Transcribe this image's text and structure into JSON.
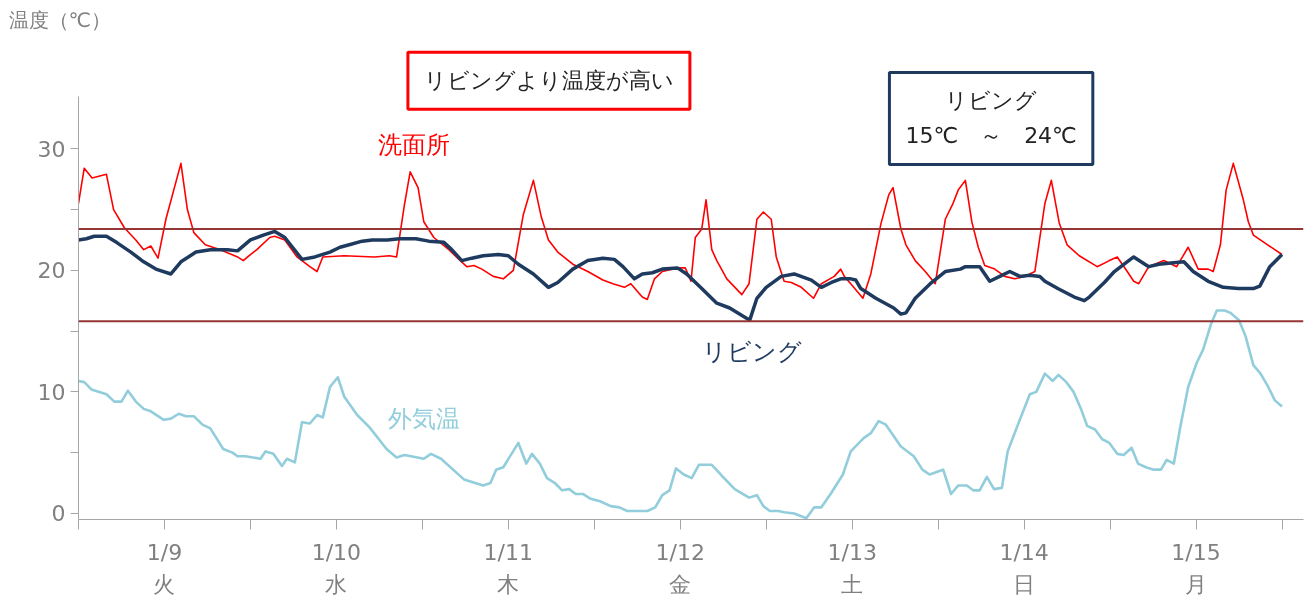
{
  "chart_data": {
    "type": "line",
    "ylabel": "温度（℃）",
    "annotations": [
      "リビングより温度が高い",
      "リビング\n15℃　～　24℃"
    ],
    "xlim": [
      "--01-09",
      "--01-16T03:00"
    ],
    "ylim": [
      -0.5,
      34.3
    ],
    "xticks": [
      {
        "value": "--01-09",
        "label": null
      },
      {
        "value": "--01-09T12:00",
        "label": "1/9\n火"
      },
      {
        "value": "--01-10",
        "label": null
      },
      {
        "value": "--01-10T12:00",
        "label": "1/10\n水"
      },
      {
        "value": "--01-11",
        "label": null
      },
      {
        "value": "--01-11T12:00",
        "label": "1/11\n木"
      },
      {
        "value": "--01-12",
        "label": null
      },
      {
        "value": "--01-12T12:00",
        "label": "1/12\n金"
      },
      {
        "value": "--01-13",
        "label": null
      },
      {
        "value": "--01-13T12:00",
        "label": "1/13\n土"
      },
      {
        "value": "--01-14",
        "label": null
      },
      {
        "value": "--01-14T12:00",
        "label": "1/14\n日"
      },
      {
        "value": "--01-15",
        "label": null
      },
      {
        "value": "--01-15T12:00",
        "label": "1/15\n月"
      },
      {
        "value": "--01-16",
        "label": null
      }
    ],
    "yticks": [
      0,
      {
        "value": 5,
        "label": null
      },
      10,
      {
        "value": 15,
        "label": null
      },
      20,
      {
        "value": 25,
        "label": null
      },
      30
    ],
    "grid": false,
    "ref_lines": [
      {
        "axis": "y",
        "value": 23.4,
        "color": "#943634"
      },
      {
        "axis": "y",
        "value": 15.8,
        "color": "#943634"
      }
    ],
    "series": [
      {
        "name": "洗面所",
        "color": "#ff0000",
        "x": [
          "--01-09T00:00",
          "--01-09T00:48",
          "--01-09T01:54",
          "--01-09T03:54",
          "--01-09T04:54",
          "--01-09T06:24",
          "--01-09T08:00",
          "--01-09T09:06",
          "--01-09T10:06",
          "--01-09T11:06",
          "--01-09T12:12",
          "--01-09T14:18",
          "--01-09T15:12",
          "--01-09T16:06",
          "--01-09T17:42",
          "--01-09T19:48",
          "--01-09T22:12",
          "--01-09T23:00",
          "--01-10T00:00",
          "--01-10T00:54",
          "--01-10T02:42",
          "--01-10T03:24",
          "--01-10T04:48",
          "--01-10T06:30",
          "--01-10T08:18",
          "--01-10T09:18",
          "--01-10T10:06",
          "--01-10T13:06",
          "--01-10T17:18",
          "--01-10T19:24",
          "--01-10T20:24",
          "--01-10T21:30",
          "--01-10T22:18",
          "--01-10T23:24",
          "--01-11T00:12",
          "--01-11T01:36",
          "--01-11T03:42",
          "--01-11T05:06",
          "--01-11T06:12",
          "--01-11T07:12",
          "--01-11T08:18",
          "--01-11T09:54",
          "--01-11T11:18",
          "--01-11T12:42",
          "--01-11T14:06",
          "--01-11T15:30",
          "--01-11T16:36",
          "--01-11T17:36",
          "--01-11T18:54",
          "--01-11T21:00",
          "--01-11T23:06",
          "--01-12T01:12",
          "--01-12T02:36",
          "--01-12T04:12",
          "--01-12T05:06",
          "--01-12T06:42",
          "--01-12T07:24",
          "--01-12T08:24",
          "--01-12T09:30",
          "--01-12T11:36",
          "--01-12T12:42",
          "--01-12T13:30",
          "--01-12T14:06",
          "--01-12T15:00",
          "--01-12T15:36",
          "--01-12T16:24",
          "--01-12T17:06",
          "--01-12T18:30",
          "--01-12T20:36",
          "--01-12T21:36",
          "--01-12T22:42",
          "--01-12T23:36",
          "--01-13T00:42",
          "--01-13T01:24",
          "--01-13T02:30",
          "--01-13T03:30",
          "--01-13T04:54",
          "--01-13T06:36",
          "--01-13T07:42",
          "--01-13T09:30",
          "--01-13T10:24",
          "--01-13T10:54",
          "--01-13T11:48",
          "--01-13T13:30",
          "--01-13T14:36",
          "--01-13T16:00",
          "--01-13T17:06",
          "--01-13T17:42",
          "--01-13T18:48",
          "--01-13T19:30",
          "--01-13T20:48",
          "--01-13T22:12",
          "--01-13T23:36",
          "--01-14T01:00",
          "--01-14T02:00",
          "--01-14T02:48",
          "--01-14T03:48",
          "--01-14T04:42",
          "--01-14T05:36",
          "--01-14T06:30",
          "--01-14T07:54",
          "--01-14T09:18",
          "--01-14T10:42",
          "--01-14T12:06",
          "--01-14T13:30",
          "--01-14T14:54",
          "--01-14T15:48",
          "--01-14T16:54",
          "--01-14T18:00",
          "--01-14T19:42",
          "--01-14T22:12",
          "--01-14T23:54",
          "--01-15T01:00",
          "--01-15T02:24",
          "--01-15T03:18",
          "--01-15T04:00",
          "--01-15T05:24",
          "--01-15T07:30",
          "--01-15T09:18",
          "--01-15T10:54",
          "--01-15T12:18",
          "--01-15T13:42",
          "--01-15T14:24",
          "--01-15T15:24",
          "--01-15T16:12",
          "--01-15T17:12",
          "--01-15T18:36",
          "--01-15T19:18",
          "--01-15T20:00",
          "--01-15T22:00",
          "--01-16T00:00"
        ],
        "values": [
          25.5,
          28.4,
          27.6,
          27.9,
          25.0,
          23.5,
          22.5,
          21.7,
          22.0,
          21.0,
          24.2,
          28.8,
          25.0,
          23.1,
          22.1,
          21.7,
          21.1,
          20.8,
          21.3,
          21.7,
          22.7,
          22.8,
          22.5,
          21.1,
          20.3,
          19.9,
          21.1,
          21.2,
          21.1,
          21.2,
          21.1,
          25.4,
          28.1,
          26.8,
          24.0,
          22.7,
          21.7,
          20.9,
          20.3,
          20.4,
          20.1,
          19.5,
          19.3,
          20.0,
          24.6,
          27.4,
          24.4,
          22.5,
          21.5,
          20.5,
          19.9,
          19.2,
          18.9,
          18.6,
          18.9,
          17.8,
          17.6,
          19.3,
          19.9,
          20.2,
          20.2,
          19.1,
          22.7,
          23.4,
          25.8,
          21.7,
          20.8,
          19.3,
          18.0,
          18.9,
          24.2,
          24.8,
          24.2,
          21.1,
          19.1,
          19.0,
          18.6,
          17.7,
          18.9,
          19.5,
          20.1,
          19.5,
          18.9,
          17.7,
          19.7,
          23.8,
          26.2,
          26.8,
          23.4,
          22.1,
          20.8,
          19.9,
          18.9,
          24.2,
          25.4,
          26.6,
          27.4,
          24.0,
          21.9,
          20.4,
          20.1,
          19.5,
          19.3,
          19.5,
          19.9,
          25.5,
          27.4,
          23.9,
          22.1,
          21.2,
          20.3,
          20.8,
          21.1,
          19.9,
          19.1,
          18.9,
          20.3,
          20.8,
          20.3,
          21.9,
          20.1,
          20.1,
          19.9,
          22.1,
          26.6,
          28.8,
          25.8,
          24.0,
          22.9,
          22.1,
          21.3
        ]
      },
      {
        "name": "リビング",
        "color": "#1f3a5f",
        "x": [
          "--01-09T00:00",
          "--01-09T01:06",
          "--01-09T02:12",
          "--01-09T03:54",
          "--01-09T05:18",
          "--01-09T07:18",
          "--01-09T09:06",
          "--01-09T10:48",
          "--01-09T12:54",
          "--01-09T14:18",
          "--01-09T16:24",
          "--01-09T18:24",
          "--01-09T20:48",
          "--01-09T22:12",
          "--01-10T00:00",
          "--01-10T01:48",
          "--01-10T03:24",
          "--01-10T04:48",
          "--01-10T07:12",
          "--01-10T09:00",
          "--01-10T11:06",
          "--01-10T12:30",
          "--01-10T13:48",
          "--01-10T15:36",
          "--01-10T17:00",
          "--01-10T19:06",
          "--01-10T20:48",
          "--01-10T23:06",
          "--01-11T00:54",
          "--01-11T03:00",
          "--01-11T04:06",
          "--01-11T05:30",
          "--01-11T06:54",
          "--01-11T08:30",
          "--01-11T10:36",
          "--01-11T12:00",
          "--01-11T13:24",
          "--01-11T15:30",
          "--01-11T17:36",
          "--01-11T18:54",
          "--01-11T21:00",
          "--01-11T23:06",
          "--01-12T01:12",
          "--01-12T02:48",
          "--01-12T04:00",
          "--01-12T05:36",
          "--01-12T06:42",
          "--01-12T08:06",
          "--01-12T09:30",
          "--01-12T11:36",
          "--01-12T12:54",
          "--01-12T15:00",
          "--01-12T17:06",
          "--01-12T18:54",
          "--01-12T21:42",
          "--01-12T22:42",
          "--01-13T00:00",
          "--01-13T02:06",
          "--01-13T03:54",
          "--01-13T06:18",
          "--01-13T07:42",
          "--01-13T09:06",
          "--01-13T10:24",
          "--01-13T11:48",
          "--01-13T12:30",
          "--01-13T13:12",
          "--01-13T15:18",
          "--01-13T17:48",
          "--01-13T18:48",
          "--01-13T19:30",
          "--01-13T20:48",
          "--01-13T22:54",
          "--01-14T01:00",
          "--01-14T03:06",
          "--01-14T03:48",
          "--01-14T05:48",
          "--01-14T07:12",
          "--01-14T08:36",
          "--01-14T10:00",
          "--01-14T11:24",
          "--01-14T12:48",
          "--01-14T14:12",
          "--01-14T14:54",
          "--01-14T16:42",
          "--01-14T19:00",
          "--01-14T20:24",
          "--01-14T21:06",
          "--01-14T23:12",
          "--01-15T00:36",
          "--01-15T02:36",
          "--01-15T03:18",
          "--01-15T05:24",
          "--01-15T06:48",
          "--01-15T08:30",
          "--01-15T10:18",
          "--01-15T11:36",
          "--01-15T13:42",
          "--01-15T15:48",
          "--01-15T17:54",
          "--01-15T20:00",
          "--01-15T20:54",
          "--01-15T22:18",
          "--01-16T00:00"
        ],
        "values": [
          22.5,
          22.6,
          22.8,
          22.8,
          22.3,
          21.5,
          20.7,
          20.1,
          19.7,
          20.7,
          21.5,
          21.7,
          21.7,
          21.6,
          22.5,
          22.9,
          23.2,
          22.7,
          20.9,
          21.1,
          21.5,
          21.9,
          22.1,
          22.4,
          22.5,
          22.5,
          22.6,
          22.6,
          22.4,
          22.3,
          21.7,
          20.8,
          21.0,
          21.2,
          21.3,
          21.2,
          20.5,
          19.7,
          18.6,
          19.0,
          20.1,
          20.8,
          21.0,
          20.9,
          20.3,
          19.3,
          19.7,
          19.8,
          20.1,
          20.2,
          19.7,
          18.5,
          17.3,
          16.9,
          15.9,
          17.7,
          18.6,
          19.5,
          19.7,
          19.2,
          18.6,
          19.0,
          19.3,
          19.3,
          19.2,
          18.5,
          17.7,
          16.9,
          16.4,
          16.5,
          17.7,
          18.9,
          19.9,
          20.1,
          20.3,
          20.3,
          19.1,
          19.5,
          19.9,
          19.5,
          19.6,
          19.5,
          19.1,
          18.5,
          17.8,
          17.5,
          17.8,
          19.0,
          19.9,
          20.8,
          21.1,
          20.3,
          20.5,
          20.6,
          20.7,
          19.9,
          19.1,
          18.6,
          18.5,
          18.5,
          18.7,
          20.3,
          21.3
        ]
      },
      {
        "name": "外気温",
        "color": "#92cddc",
        "x": [
          "--01-09T00:00",
          "--01-09T00:48",
          "--01-09T01:48",
          "--01-09T03:54",
          "--01-09T05:00",
          "--01-09T06:00",
          "--01-09T06:54",
          "--01-09T08:00",
          "--01-09T09:06",
          "--01-09T10:06",
          "--01-09T11:54",
          "--01-09T12:54",
          "--01-09T14:00",
          "--01-09T15:00",
          "--01-09T16:06",
          "--01-09T17:18",
          "--01-09T18:24",
          "--01-09T20:12",
          "--01-09T21:30",
          "--01-09T22:12",
          "--01-09T23:18",
          "--01-10T01:24",
          "--01-10T02:06",
          "--01-10T03:12",
          "--01-10T04:24",
          "--01-10T05:06",
          "--01-10T06:12",
          "--01-10T07:12",
          "--01-10T08:18",
          "--01-10T09:18",
          "--01-10T10:06",
          "--01-10T11:06",
          "--01-10T12:12",
          "--01-10T13:06",
          "--01-10T14:54",
          "--01-10T16:36",
          "--01-10T19:00",
          "--01-10T20:24",
          "--01-10T21:30",
          "--01-11T00:12",
          "--01-11T01:12",
          "--01-11T02:36",
          "--01-11T05:48",
          "--01-11T08:30",
          "--01-11T09:30",
          "--01-11T10:18",
          "--01-11T11:18",
          "--01-11T13:24",
          "--01-11T14:30",
          "--01-11T15:18",
          "--01-11T16:24",
          "--01-11T17:24",
          "--01-11T18:30",
          "--01-11T19:30",
          "--01-11T20:30",
          "--01-11T21:24",
          "--01-11T22:24",
          "--01-11T23:30",
          "--01-12T00:48",
          "--01-12T02:18",
          "--01-12T03:30",
          "--01-12T04:36",
          "--01-12T07:24",
          "--01-12T08:30",
          "--01-12T09:30",
          "--01-12T10:30",
          "--01-12T11:24",
          "--01-12T12:30",
          "--01-12T13:36",
          "--01-12T14:36",
          "--01-12T16:24",
          "--01-12T17:48",
          "--01-12T19:36",
          "--01-12T21:36",
          "--01-12T22:42",
          "--01-12T23:36",
          "--01-13T00:30",
          "--01-13T01:42",
          "--01-13T02:30",
          "--01-13T03:54",
          "--01-13T05:36",
          "--01-13T06:42",
          "--01-13T07:42",
          "--01-13T09:06",
          "--01-13T10:42",
          "--01-13T11:48",
          "--01-13T13:36",
          "--01-13T14:36",
          "--01-13T15:42",
          "--01-13T16:42",
          "--01-13T18:48",
          "--01-13T20:36",
          "--01-13T21:48",
          "--01-13T22:48",
          "--01-14T00:42",
          "--01-14T01:48",
          "--01-14T02:48",
          "--01-14T04:00",
          "--01-14T04:54",
          "--01-14T05:48",
          "--01-14T06:48",
          "--01-14T07:48",
          "--01-14T08:54",
          "--01-14T09:42",
          "--01-14T11:00",
          "--01-14T12:48",
          "--01-14T13:42",
          "--01-14T14:54",
          "--01-14T16:00",
          "--01-14T16:48",
          "--01-14T17:54",
          "--01-14T18:54",
          "--01-14T20:00",
          "--01-14T20:48",
          "--01-14T21:54",
          "--01-14T22:54",
          "--01-14T23:54",
          "--01-15T01:00",
          "--01-15T01:54",
          "--01-15T03:00",
          "--01-15T03:54",
          "--01-15T05:00",
          "--01-15T06:06",
          "--01-15T07:06",
          "--01-15T07:54",
          "--01-15T08:54",
          "--01-15T09:48",
          "--01-15T10:54",
          "--01-15T12:06",
          "--01-15T13:00",
          "--01-15T14:06",
          "--01-15T14:54",
          "--01-15T16:00",
          "--01-15T16:48",
          "--01-15T18:00",
          "--01-15T18:54",
          "--01-15T20:00",
          "--01-15T21:00",
          "--01-15T22:00",
          "--01-15T23:00",
          "--01-16T00:00"
        ],
        "values": [
          10.9,
          10.8,
          10.2,
          9.8,
          9.2,
          9.2,
          10.1,
          9.2,
          8.6,
          8.4,
          7.7,
          7.8,
          8.2,
          8.0,
          8.0,
          7.3,
          7.0,
          5.3,
          5.0,
          4.7,
          4.7,
          4.5,
          5.1,
          4.9,
          3.9,
          4.5,
          4.2,
          7.5,
          7.4,
          8.1,
          7.9,
          10.4,
          11.2,
          9.6,
          8.1,
          7.1,
          5.3,
          4.6,
          4.8,
          4.5,
          4.9,
          4.5,
          2.8,
          2.3,
          2.5,
          3.6,
          3.8,
          5.8,
          4.1,
          4.9,
          4.1,
          2.9,
          2.5,
          1.9,
          2.0,
          1.6,
          1.6,
          1.2,
          1.0,
          0.6,
          0.5,
          0.2,
          0.2,
          0.5,
          1.5,
          1.9,
          3.7,
          3.2,
          2.9,
          4.0,
          4.0,
          3.1,
          2.0,
          1.3,
          1.5,
          0.6,
          0.2,
          0.2,
          0.1,
          0.0,
          -0.4,
          0.5,
          0.5,
          1.7,
          3.2,
          5.1,
          6.2,
          6.6,
          7.6,
          7.3,
          5.5,
          4.7,
          3.6,
          3.2,
          3.6,
          1.6,
          2.3,
          2.3,
          1.9,
          1.9,
          3.0,
          2.0,
          2.1,
          5.1,
          7.1,
          9.8,
          10.0,
          11.5,
          10.9,
          11.4,
          10.8,
          10.0,
          8.5,
          7.2,
          6.9,
          6.1,
          5.8,
          4.9,
          4.8,
          5.4,
          4.1,
          3.8,
          3.6,
          3.6,
          4.4,
          4.1,
          7.1,
          10.4,
          12.4,
          13.5,
          15.6,
          16.7,
          16.7,
          16.5,
          15.9,
          14.6,
          12.2,
          11.5,
          10.5,
          9.3,
          8.8
        ]
      }
    ]
  }
}
